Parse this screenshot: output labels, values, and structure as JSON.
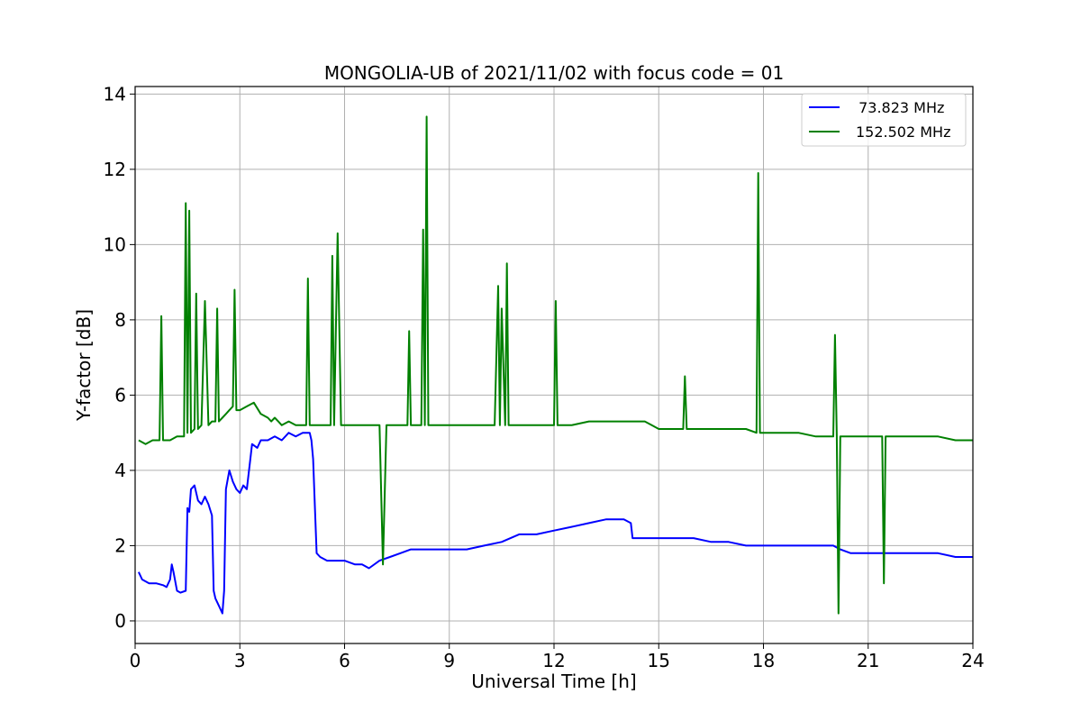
{
  "chart_data": {
    "type": "line",
    "title": "MONGOLIA-UB of 2021/11/02 with focus code = 01",
    "xlabel": "Universal Time [h]",
    "ylabel": "Y-factor [dB]",
    "xlim": [
      0,
      24
    ],
    "ylim": [
      -0.6,
      14.2
    ],
    "xticks": [
      0,
      3,
      6,
      9,
      12,
      15,
      18,
      21,
      24
    ],
    "xtick_labels": [
      "0",
      "3",
      "6",
      "9",
      "12",
      "15",
      "18",
      "21",
      "24"
    ],
    "yticks": [
      0,
      2,
      4,
      6,
      8,
      10,
      12,
      14
    ],
    "ytick_labels": [
      "0",
      "2",
      "4",
      "6",
      "8",
      "10",
      "12",
      "14"
    ],
    "grid": true,
    "legend_position": "top-right",
    "series": [
      {
        "name": " 73.823 MHz",
        "color": "#0000ff",
        "x": [
          0.1,
          0.2,
          0.4,
          0.6,
          0.8,
          0.9,
          1.0,
          1.05,
          1.1,
          1.2,
          1.3,
          1.45,
          1.5,
          1.55,
          1.6,
          1.7,
          1.8,
          1.9,
          2.0,
          2.1,
          2.2,
          2.25,
          2.3,
          2.4,
          2.5,
          2.55,
          2.6,
          2.7,
          2.8,
          2.9,
          3.0,
          3.1,
          3.2,
          3.3,
          3.35,
          3.5,
          3.6,
          3.8,
          4.0,
          4.2,
          4.4,
          4.6,
          4.8,
          5.0,
          5.05,
          5.1,
          5.15,
          5.2,
          5.3,
          5.5,
          5.7,
          6.0,
          6.3,
          6.5,
          6.7,
          7.0,
          7.3,
          7.6,
          7.9,
          8.2,
          8.5,
          8.8,
          9.0,
          9.5,
          10.0,
          10.5,
          11.0,
          11.5,
          12.0,
          12.5,
          13.0,
          13.5,
          14.0,
          14.2,
          14.25,
          14.5,
          15.0,
          15.5,
          16.0,
          16.5,
          17.0,
          17.5,
          18.0,
          18.5,
          19.0,
          19.5,
          20.0,
          20.2,
          20.5,
          21.0,
          21.5,
          22.0,
          22.5,
          23.0,
          23.5,
          24.0
        ],
        "y": [
          1.3,
          1.1,
          1.0,
          1.0,
          0.95,
          0.9,
          1.1,
          1.5,
          1.3,
          0.8,
          0.75,
          0.8,
          3.0,
          2.9,
          3.5,
          3.6,
          3.2,
          3.1,
          3.3,
          3.1,
          2.8,
          0.8,
          0.6,
          0.4,
          0.2,
          0.8,
          3.5,
          4.0,
          3.7,
          3.5,
          3.4,
          3.6,
          3.5,
          4.3,
          4.7,
          4.6,
          4.8,
          4.8,
          4.9,
          4.8,
          5.0,
          4.9,
          5.0,
          5.0,
          4.8,
          4.3,
          3.0,
          1.8,
          1.7,
          1.6,
          1.6,
          1.6,
          1.5,
          1.5,
          1.4,
          1.6,
          1.7,
          1.8,
          1.9,
          1.9,
          1.9,
          1.9,
          1.9,
          1.9,
          2.0,
          2.1,
          2.3,
          2.3,
          2.4,
          2.5,
          2.6,
          2.7,
          2.7,
          2.6,
          2.2,
          2.2,
          2.2,
          2.2,
          2.2,
          2.1,
          2.1,
          2.0,
          2.0,
          2.0,
          2.0,
          2.0,
          2.0,
          1.9,
          1.8,
          1.8,
          1.8,
          1.8,
          1.8,
          1.8,
          1.7,
          1.7
        ]
      },
      {
        "name": "152.502 MHz",
        "color": "#008000",
        "x": [
          0.1,
          0.3,
          0.5,
          0.7,
          0.75,
          0.8,
          1.0,
          1.2,
          1.4,
          1.45,
          1.5,
          1.55,
          1.6,
          1.7,
          1.75,
          1.8,
          1.9,
          2.0,
          2.1,
          2.2,
          2.3,
          2.35,
          2.4,
          2.5,
          2.6,
          2.7,
          2.8,
          2.85,
          2.9,
          3.0,
          3.2,
          3.4,
          3.6,
          3.8,
          3.9,
          4.0,
          4.1,
          4.2,
          4.4,
          4.6,
          4.8,
          4.9,
          4.95,
          5.0,
          5.2,
          5.4,
          5.6,
          5.65,
          5.7,
          5.8,
          5.9,
          6.0,
          6.2,
          6.4,
          6.6,
          6.8,
          7.0,
          7.1,
          7.2,
          7.5,
          7.8,
          7.85,
          7.9,
          8.0,
          8.2,
          8.25,
          8.3,
          8.35,
          8.4,
          8.6,
          8.8,
          9.0,
          9.2,
          9.5,
          9.8,
          10.0,
          10.3,
          10.4,
          10.45,
          10.5,
          10.6,
          10.65,
          10.7,
          11.0,
          11.5,
          11.8,
          12.0,
          12.05,
          12.1,
          12.5,
          13.0,
          13.5,
          14.0,
          14.5,
          14.6,
          14.8,
          15.0,
          15.5,
          15.7,
          15.75,
          15.8,
          16.0,
          16.5,
          17.0,
          17.5,
          17.8,
          17.85,
          17.9,
          18.0,
          18.2,
          18.5,
          18.9,
          19.0,
          19.5,
          19.8,
          20.0,
          20.05,
          20.1,
          20.15,
          20.2,
          20.5,
          21.0,
          21.4,
          21.45,
          21.5,
          22.0,
          22.5,
          23.0,
          23.5,
          23.8,
          24.0
        ],
        "y": [
          4.8,
          4.7,
          4.8,
          4.8,
          8.1,
          4.8,
          4.8,
          4.9,
          4.9,
          11.1,
          5.0,
          10.9,
          5.0,
          5.1,
          8.7,
          5.1,
          5.2,
          8.5,
          5.2,
          5.3,
          5.3,
          8.3,
          5.3,
          5.4,
          5.5,
          5.6,
          5.7,
          8.8,
          5.6,
          5.6,
          5.7,
          5.8,
          5.5,
          5.4,
          5.3,
          5.4,
          5.3,
          5.2,
          5.3,
          5.2,
          5.2,
          5.2,
          9.1,
          5.2,
          5.2,
          5.2,
          5.2,
          9.7,
          5.2,
          10.3,
          5.2,
          5.2,
          5.2,
          5.2,
          5.2,
          5.2,
          5.2,
          1.5,
          5.2,
          5.2,
          5.2,
          7.7,
          5.2,
          5.2,
          5.2,
          10.4,
          5.2,
          13.4,
          5.2,
          5.2,
          5.2,
          5.2,
          5.2,
          5.2,
          5.2,
          5.2,
          5.2,
          8.9,
          5.2,
          8.3,
          5.2,
          9.5,
          5.2,
          5.2,
          5.2,
          5.2,
          5.2,
          8.5,
          5.2,
          5.2,
          5.3,
          5.3,
          5.3,
          5.3,
          5.3,
          5.2,
          5.1,
          5.1,
          5.1,
          6.5,
          5.1,
          5.1,
          5.1,
          5.1,
          5.1,
          5.0,
          11.9,
          5.0,
          5.0,
          5.0,
          5.0,
          5.0,
          5.0,
          4.9,
          4.9,
          4.9,
          7.6,
          4.9,
          0.2,
          4.9,
          4.9,
          4.9,
          4.9,
          1.0,
          4.9,
          4.9,
          4.9,
          4.9,
          4.8,
          4.8,
          4.8
        ]
      }
    ]
  }
}
